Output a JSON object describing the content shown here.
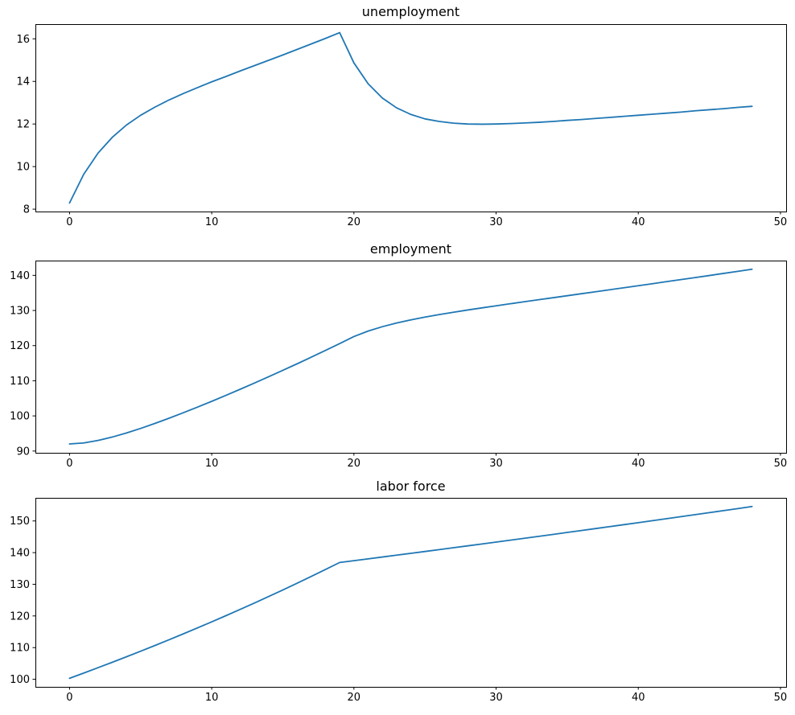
{
  "figure": {
    "background_color": "#ffffff",
    "text_color": "#000000",
    "accent_line_color": "#1f77b4"
  },
  "chart_data": [
    {
      "type": "line",
      "title": "unemployment",
      "xlabel": "",
      "ylabel": "",
      "grid": false,
      "legend": null,
      "line_color": "#1f77b4",
      "xlim": [
        -2.4,
        50.4
      ],
      "ylim": [
        7.89,
        16.69
      ],
      "xticks": [
        0,
        10,
        20,
        30,
        40,
        50
      ],
      "yticks": [
        8,
        10,
        12,
        14,
        16
      ],
      "x": [
        0,
        1,
        2,
        3,
        4,
        5,
        6,
        7,
        8,
        9,
        10,
        11,
        12,
        13,
        14,
        15,
        16,
        17,
        18,
        19,
        20,
        21,
        22,
        23,
        24,
        25,
        26,
        27,
        28,
        29,
        30,
        31,
        32,
        33,
        34,
        35,
        36,
        37,
        38,
        39,
        40,
        41,
        42,
        43,
        44,
        45,
        46,
        47,
        48
      ],
      "values": [
        8.29,
        9.64,
        10.63,
        11.37,
        11.95,
        12.41,
        12.79,
        13.13,
        13.43,
        13.71,
        13.98,
        14.23,
        14.49,
        14.74,
        14.99,
        15.24,
        15.5,
        15.76,
        16.02,
        16.29,
        14.87,
        13.89,
        13.22,
        12.76,
        12.45,
        12.24,
        12.12,
        12.04,
        12.0,
        11.99,
        12.0,
        12.02,
        12.05,
        12.08,
        12.12,
        12.17,
        12.21,
        12.26,
        12.31,
        12.36,
        12.41,
        12.46,
        12.51,
        12.56,
        12.62,
        12.67,
        12.72,
        12.78,
        12.83
      ]
    },
    {
      "type": "line",
      "title": "employment",
      "xlabel": "",
      "ylabel": "",
      "grid": false,
      "legend": null,
      "line_color": "#1f77b4",
      "xlim": [
        -2.4,
        50.4
      ],
      "ylim": [
        89.5,
        144.2
      ],
      "xticks": [
        0,
        10,
        20,
        30,
        40,
        50
      ],
      "yticks": [
        90,
        100,
        110,
        120,
        130,
        140
      ],
      "x": [
        0,
        1,
        2,
        3,
        4,
        5,
        6,
        7,
        8,
        9,
        10,
        11,
        12,
        13,
        14,
        15,
        16,
        17,
        18,
        19,
        20,
        21,
        22,
        23,
        24,
        25,
        26,
        27,
        28,
        29,
        30,
        31,
        32,
        33,
        34,
        35,
        36,
        37,
        38,
        39,
        40,
        41,
        42,
        43,
        44,
        45,
        46,
        47,
        48
      ],
      "values": [
        92.01,
        92.31,
        93.01,
        93.98,
        95.14,
        96.44,
        97.86,
        99.34,
        100.9,
        102.51,
        104.15,
        105.85,
        107.58,
        109.34,
        111.14,
        112.97,
        114.82,
        116.71,
        118.64,
        120.59,
        122.58,
        124.14,
        125.39,
        126.43,
        127.33,
        128.12,
        128.83,
        129.5,
        130.14,
        130.74,
        131.33,
        131.92,
        132.49,
        133.07,
        133.63,
        134.2,
        134.77,
        135.34,
        135.91,
        136.48,
        137.05,
        137.63,
        138.21,
        138.79,
        139.37,
        139.95,
        140.55,
        141.13,
        141.73
      ]
    },
    {
      "type": "line",
      "title": "labor force",
      "xlabel": "",
      "ylabel": "",
      "grid": false,
      "legend": null,
      "line_color": "#1f77b4",
      "xlim": [
        -2.4,
        50.4
      ],
      "ylim": [
        97.6,
        157.3
      ],
      "xticks": [
        0,
        10,
        20,
        30,
        40,
        50
      ],
      "yticks": [
        100,
        110,
        120,
        130,
        140,
        150
      ],
      "x": [
        0,
        1,
        2,
        3,
        4,
        5,
        6,
        7,
        8,
        9,
        10,
        11,
        12,
        13,
        14,
        15,
        16,
        17,
        18,
        19,
        20,
        21,
        22,
        23,
        24,
        25,
        26,
        27,
        28,
        29,
        30,
        31,
        32,
        33,
        34,
        35,
        36,
        37,
        38,
        39,
        40,
        41,
        42,
        43,
        44,
        45,
        46,
        47,
        48
      ],
      "values": [
        100.3,
        101.95,
        103.64,
        105.35,
        107.09,
        108.85,
        110.65,
        112.47,
        114.33,
        116.22,
        118.13,
        120.08,
        122.07,
        124.08,
        126.13,
        128.21,
        130.32,
        132.47,
        134.66,
        136.88,
        137.45,
        138.03,
        138.61,
        139.19,
        139.78,
        140.36,
        140.95,
        141.54,
        142.14,
        142.73,
        143.33,
        143.94,
        144.54,
        145.15,
        145.75,
        146.37,
        146.98,
        147.6,
        148.22,
        148.84,
        149.46,
        150.09,
        150.72,
        151.35,
        151.99,
        152.62,
        153.27,
        153.91,
        154.56
      ]
    }
  ]
}
